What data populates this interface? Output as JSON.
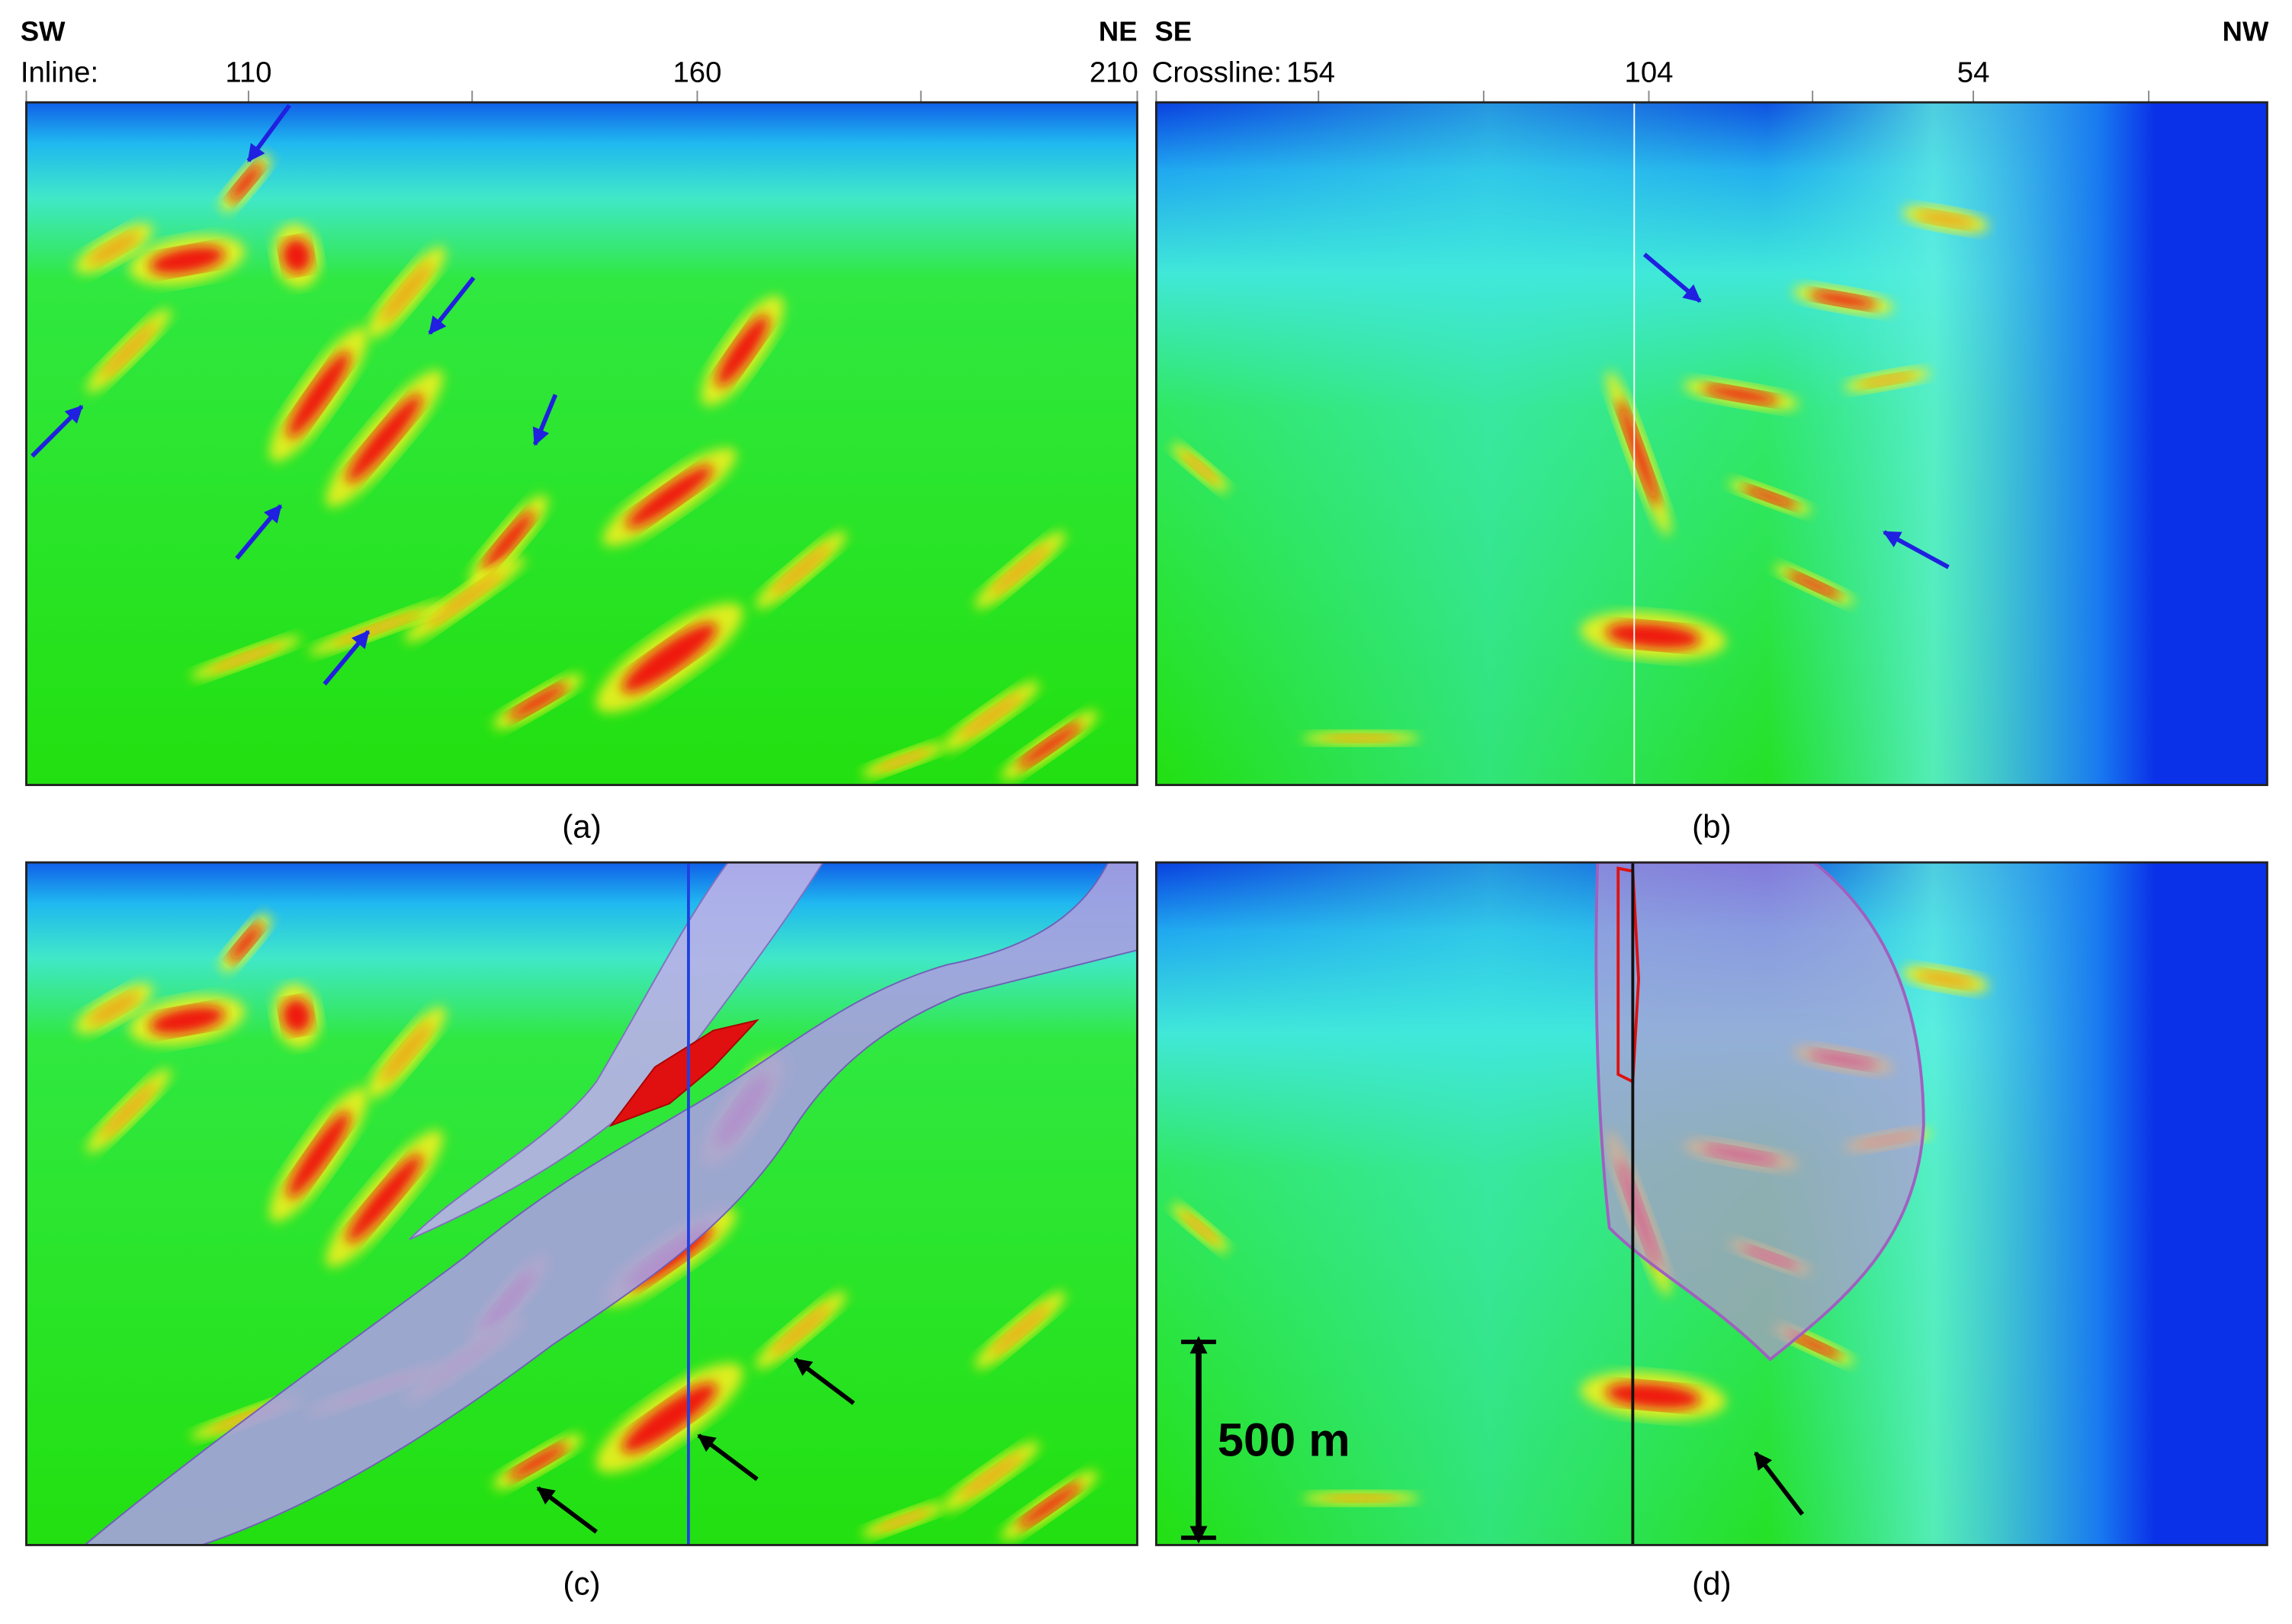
{
  "top_left": {
    "left_dir": "SW",
    "right_dir": "NE",
    "axis_title": "Inline:",
    "ticks": [
      "110",
      "160",
      "210"
    ]
  },
  "top_right": {
    "left_dir": "SE",
    "right_dir": "NW",
    "axis_title": "Crossline:",
    "ticks": [
      "154",
      "104",
      "54"
    ]
  },
  "panels": [
    "(a)",
    "(b)",
    "(c)",
    "(d)"
  ],
  "scale_bar": "500 m"
}
